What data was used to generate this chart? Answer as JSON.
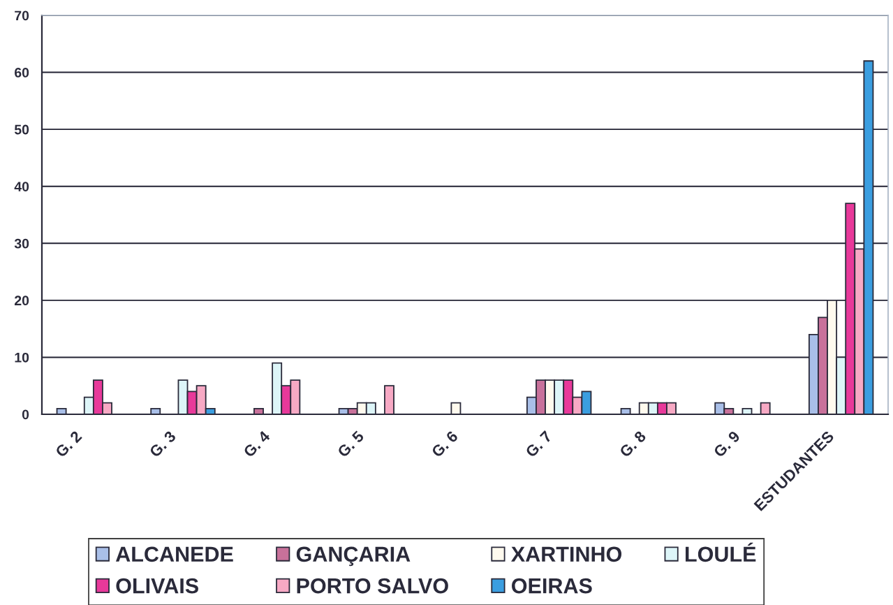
{
  "chart_data": {
    "type": "bar",
    "categories": [
      "G. 2",
      "G. 3",
      "G. 4",
      "G. 5",
      "G. 6",
      "G. 7",
      "G. 8",
      "G. 9",
      "ESTUDANTES"
    ],
    "series": [
      {
        "name": "ALCANEDE",
        "color": "#a9bfe8",
        "values": [
          1,
          1,
          0,
          1,
          0,
          3,
          1,
          2,
          14
        ]
      },
      {
        "name": "GANÇARIA",
        "color": "#c8719a",
        "values": [
          0,
          0,
          1,
          1,
          0,
          6,
          0,
          1,
          17
        ]
      },
      {
        "name": "XARTINHO",
        "color": "#fffaee",
        "values": [
          0,
          0,
          0,
          2,
          2,
          6,
          2,
          0,
          20
        ]
      },
      {
        "name": "LOULÉ",
        "color": "#ddf5f8",
        "values": [
          3,
          6,
          9,
          2,
          0,
          6,
          2,
          1,
          10
        ]
      },
      {
        "name": "OLIVAIS",
        "color": "#e8399a",
        "values": [
          6,
          4,
          5,
          0,
          0,
          6,
          2,
          0,
          37
        ]
      },
      {
        "name": "PORTO SALVO",
        "color": "#f7a9c4",
        "values": [
          2,
          5,
          6,
          5,
          0,
          3,
          2,
          2,
          29
        ]
      },
      {
        "name": "OEIRAS",
        "color": "#3b9ee0",
        "values": [
          0,
          1,
          0,
          0,
          0,
          4,
          0,
          0,
          62
        ]
      }
    ],
    "ylim": [
      0,
      70
    ],
    "yticks": [
      0,
      10,
      20,
      30,
      40,
      50,
      60,
      70
    ],
    "grid": "y",
    "legend": "bottom"
  }
}
